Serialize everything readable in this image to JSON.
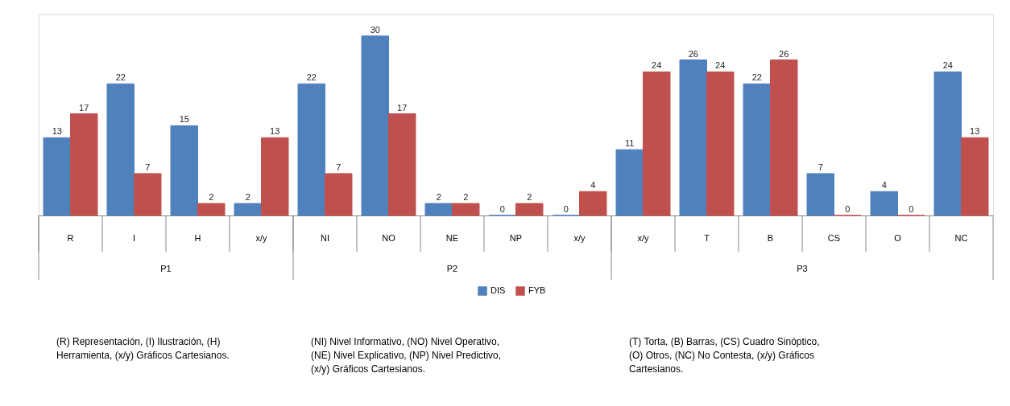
{
  "chart_data": {
    "type": "bar",
    "categories": [
      "R",
      "I",
      "H",
      "x/y",
      "NI",
      "NO",
      "NE",
      "NP",
      "x/y",
      "x/y",
      "T",
      "B",
      "CS",
      "O",
      "NC"
    ],
    "series": [
      {
        "name": "DIS",
        "color": "#4f81bd",
        "values": [
          13,
          22,
          15,
          2,
          22,
          30,
          2,
          0,
          0,
          11,
          26,
          22,
          7,
          4,
          24
        ]
      },
      {
        "name": "FYB",
        "color": "#c0504d",
        "values": [
          17,
          7,
          2,
          13,
          7,
          17,
          2,
          2,
          4,
          24,
          24,
          26,
          0,
          0,
          13
        ]
      }
    ],
    "data_labels": true,
    "legend": "bottom",
    "grid": false,
    "annotations": [
      "P1",
      "P2",
      "P3",
      "(R) Representación, (I) Ilustración, (H) Herramienta, (x/y) Gráficos Cartesianos.",
      "(NI) Nivel Informativo, (NO) Nivel Operativo, (NE) Nivel Explicativo, (NP) Nivel Predictivo, (x/y) Gráficos Cartesianos.",
      "(T) Torta, (B) Barras, (CS) Cuadro Sinóptico, (O) Otros, (NC) No Contesta, (x/y) Gráficos Cartesianos."
    ]
  }
}
